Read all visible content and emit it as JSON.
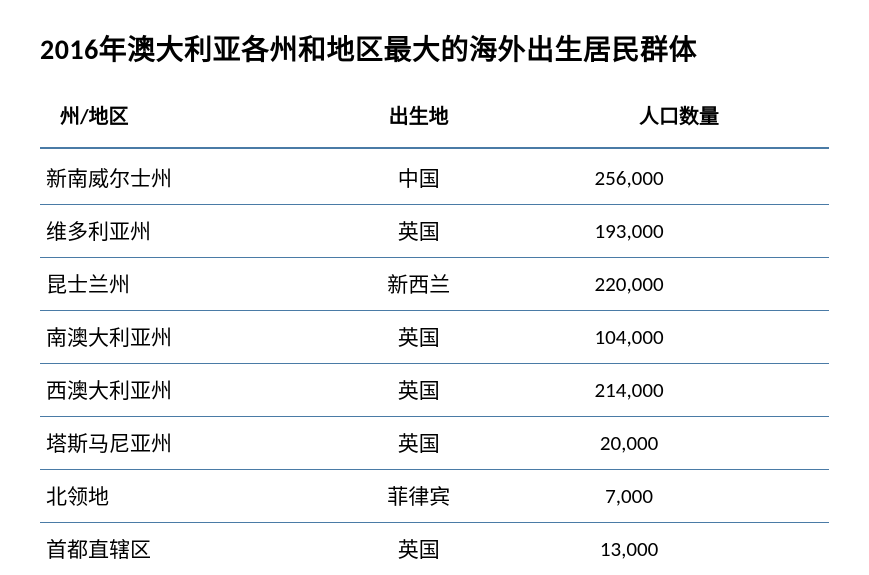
{
  "title": "2016年澳大利亚各州和地区最大的海外出生居民群体",
  "table": {
    "type": "table",
    "columns": [
      "州/地区",
      "出生地",
      "人口数量"
    ],
    "rows": [
      [
        "新南威尔士州",
        "中国",
        "256,000"
      ],
      [
        "维多利亚州",
        "英国",
        "193,000"
      ],
      [
        "昆士兰州",
        "新西兰",
        "220,000"
      ],
      [
        "南澳大利亚州",
        "英国",
        "104,000"
      ],
      [
        "西澳大利亚州",
        "英国",
        "214,000"
      ],
      [
        "塔斯马尼亚州",
        "英国",
        "20,000"
      ],
      [
        "北领地",
        "菲律宾",
        "7,000"
      ],
      [
        "首都直辖区",
        "英国",
        "13,000"
      ]
    ],
    "header_border_color": "#4a7ba6",
    "row_border_color": "#4a7ba6",
    "title_fontsize": 28,
    "header_fontsize": 20,
    "cell_fontsize": 21,
    "background_color": "#ffffff",
    "text_color": "#000000"
  }
}
